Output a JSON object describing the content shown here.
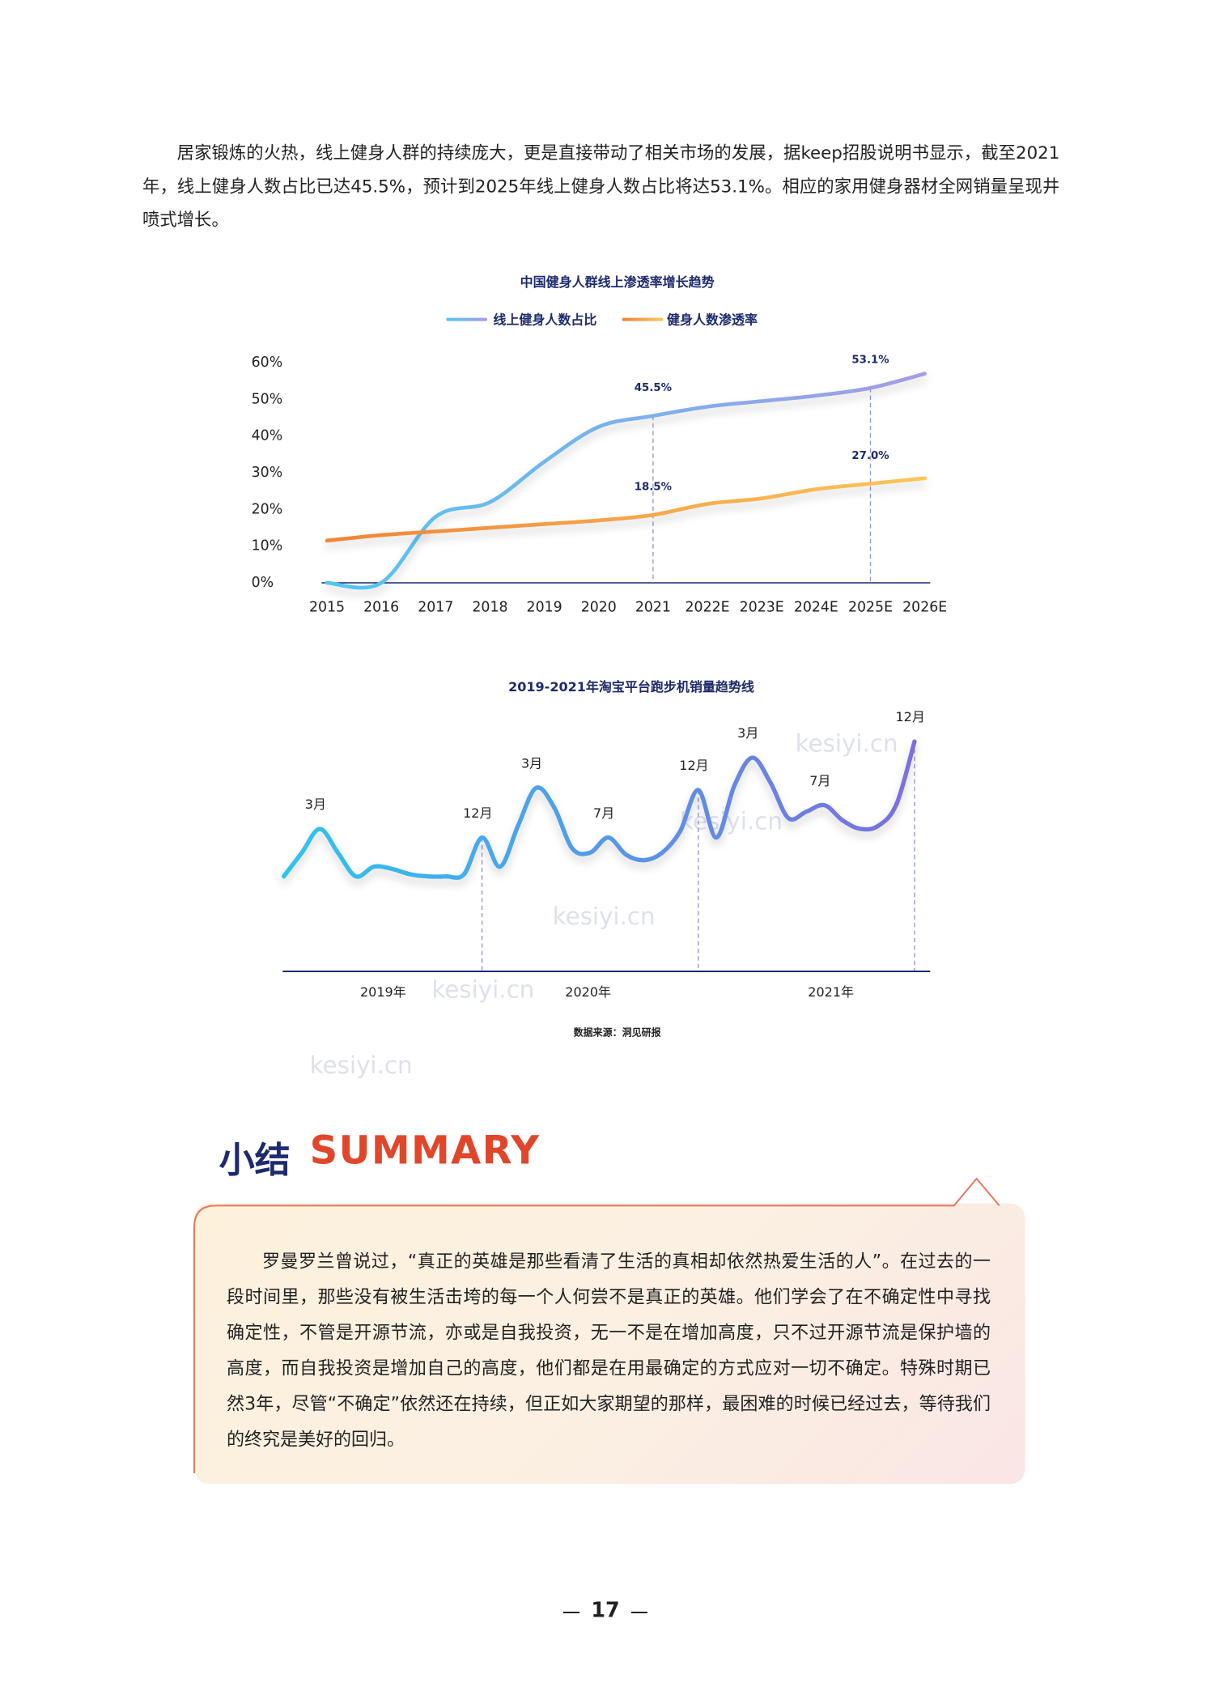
{
  "intro": "居家锻炼的火热，线上健身人群的持续庞大，更是直接带动了相关市场的发展，据keep招股说明书显示，截至2021年，线上健身人数占比已达45.5%，预计到2025年线上健身人数占比将达53.1%。相应的家用健身器材全网销量呈现井喷式增长。",
  "chart_data": [
    {
      "type": "line",
      "title": "中国健身人群线上渗透率增长趋势",
      "categories": [
        "2015",
        "2016",
        "2017",
        "2018",
        "2019",
        "2020",
        "2021",
        "2022E",
        "2023E",
        "2024E",
        "2025E",
        "2026E"
      ],
      "series": [
        {
          "name": "线上健身人数占比",
          "color": [
            "#52c6f2",
            "#a49ce6"
          ],
          "values": [
            0,
            0,
            18,
            22,
            33,
            42.5,
            45.5,
            48,
            49.5,
            51,
            53.1,
            57
          ],
          "value_labels": [
            null,
            null,
            null,
            null,
            null,
            null,
            "45.5%",
            null,
            null,
            null,
            "53.1%",
            null
          ]
        },
        {
          "name": "健身人数渗透率",
          "color": [
            "#f08438",
            "#fcc55a"
          ],
          "values": [
            11.5,
            13,
            14,
            15,
            16,
            17,
            18.5,
            21.5,
            23,
            25.5,
            27.0,
            28.5
          ],
          "value_labels": [
            null,
            null,
            null,
            null,
            null,
            null,
            "18.5%",
            null,
            null,
            null,
            "27.0%",
            null
          ]
        }
      ],
      "ylim": [
        0,
        60
      ],
      "yticks": [
        {
          "value": 0,
          "label": "0%"
        },
        {
          "value": 10,
          "label": "10%"
        },
        {
          "value": 20,
          "label": "20%"
        },
        {
          "value": 30,
          "label": "30%"
        },
        {
          "value": 40,
          "label": "40%"
        },
        {
          "value": 50,
          "label": "50%"
        },
        {
          "value": 60,
          "label": "60%"
        }
      ],
      "grid": false,
      "legend": "top"
    },
    {
      "type": "line",
      "title": "2019-2021年淘宝平台跑步机销量趋势线",
      "categories": [
        null,
        null,
        "3月",
        null,
        null,
        null,
        null,
        null,
        null,
        null,
        null,
        "12月",
        null,
        null,
        "3月",
        null,
        null,
        null,
        "7月",
        null,
        null,
        null,
        null,
        "12月",
        null,
        null,
        "3月",
        null,
        null,
        null,
        "7月",
        null,
        null,
        null,
        null,
        "12月"
      ],
      "year_labels": [
        "2019年",
        "2020年",
        "2021年"
      ],
      "series": [
        {
          "color": [
            "#2ec4f0",
            "#7b6fe0"
          ],
          "values": [
            88,
            110,
            132,
            110,
            88,
            97,
            95,
            90,
            88,
            88,
            90,
            124,
            97,
            135,
            170,
            152,
            114,
            110,
            124,
            108,
            103,
            110,
            130,
            168,
            124,
            172,
            198,
            175,
            142,
            148,
            154,
            140,
            132,
            135,
            155,
            213
          ]
        }
      ],
      "ylim": [
        0,
        250
      ],
      "source": "数据来源：洞见研报"
    }
  ],
  "watermark": "kesiyi.cn",
  "summary": {
    "title_cn": "小结",
    "title_en": "SUMMARY",
    "text": "罗曼罗兰曾说过，“真正的英雄是那些看清了生活的真相却依然热爱生活的人”。在过去的一段时间里，那些没有被生活击垮的每一个人何尝不是真正的英雄。他们学会了在不确定性中寻找确定性，不管是开源节流，亦或是自我投资，无一不是在增加高度，只不过开源节流是保护墙的高度，而自我投资是增加自己的高度，他们都是在用最确定的方式应对一切不确定。特殊时期已然3年，尽管“不确定”依然还在持续，但正如大家期望的那样，最困难的时候已经过去，等待我们的终究是美好的回归。"
  },
  "page_number": "17"
}
